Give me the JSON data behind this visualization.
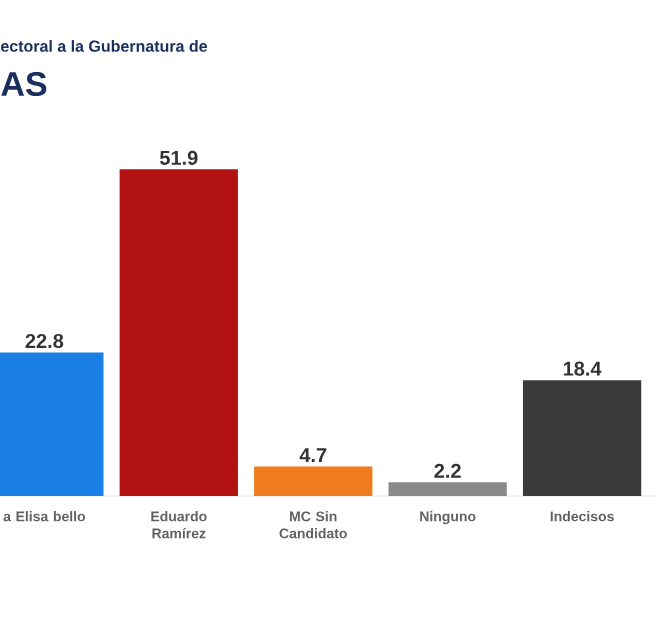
{
  "chart_data": {
    "type": "bar",
    "title": "ectoral a la Gubernatura de",
    "subtitle": "AS",
    "categories": [
      "a Elisa bello",
      "Eduardo Ramírez",
      "MC Sin Candidato",
      "Ninguno",
      "Indecisos"
    ],
    "values": [
      22.8,
      51.9,
      4.7,
      2.2,
      18.4
    ],
    "colors": [
      "#1a7fe6",
      "#b31212",
      "#f07a1e",
      "#8a8a8a",
      "#3a3a3a"
    ],
    "data_labels": true
  }
}
